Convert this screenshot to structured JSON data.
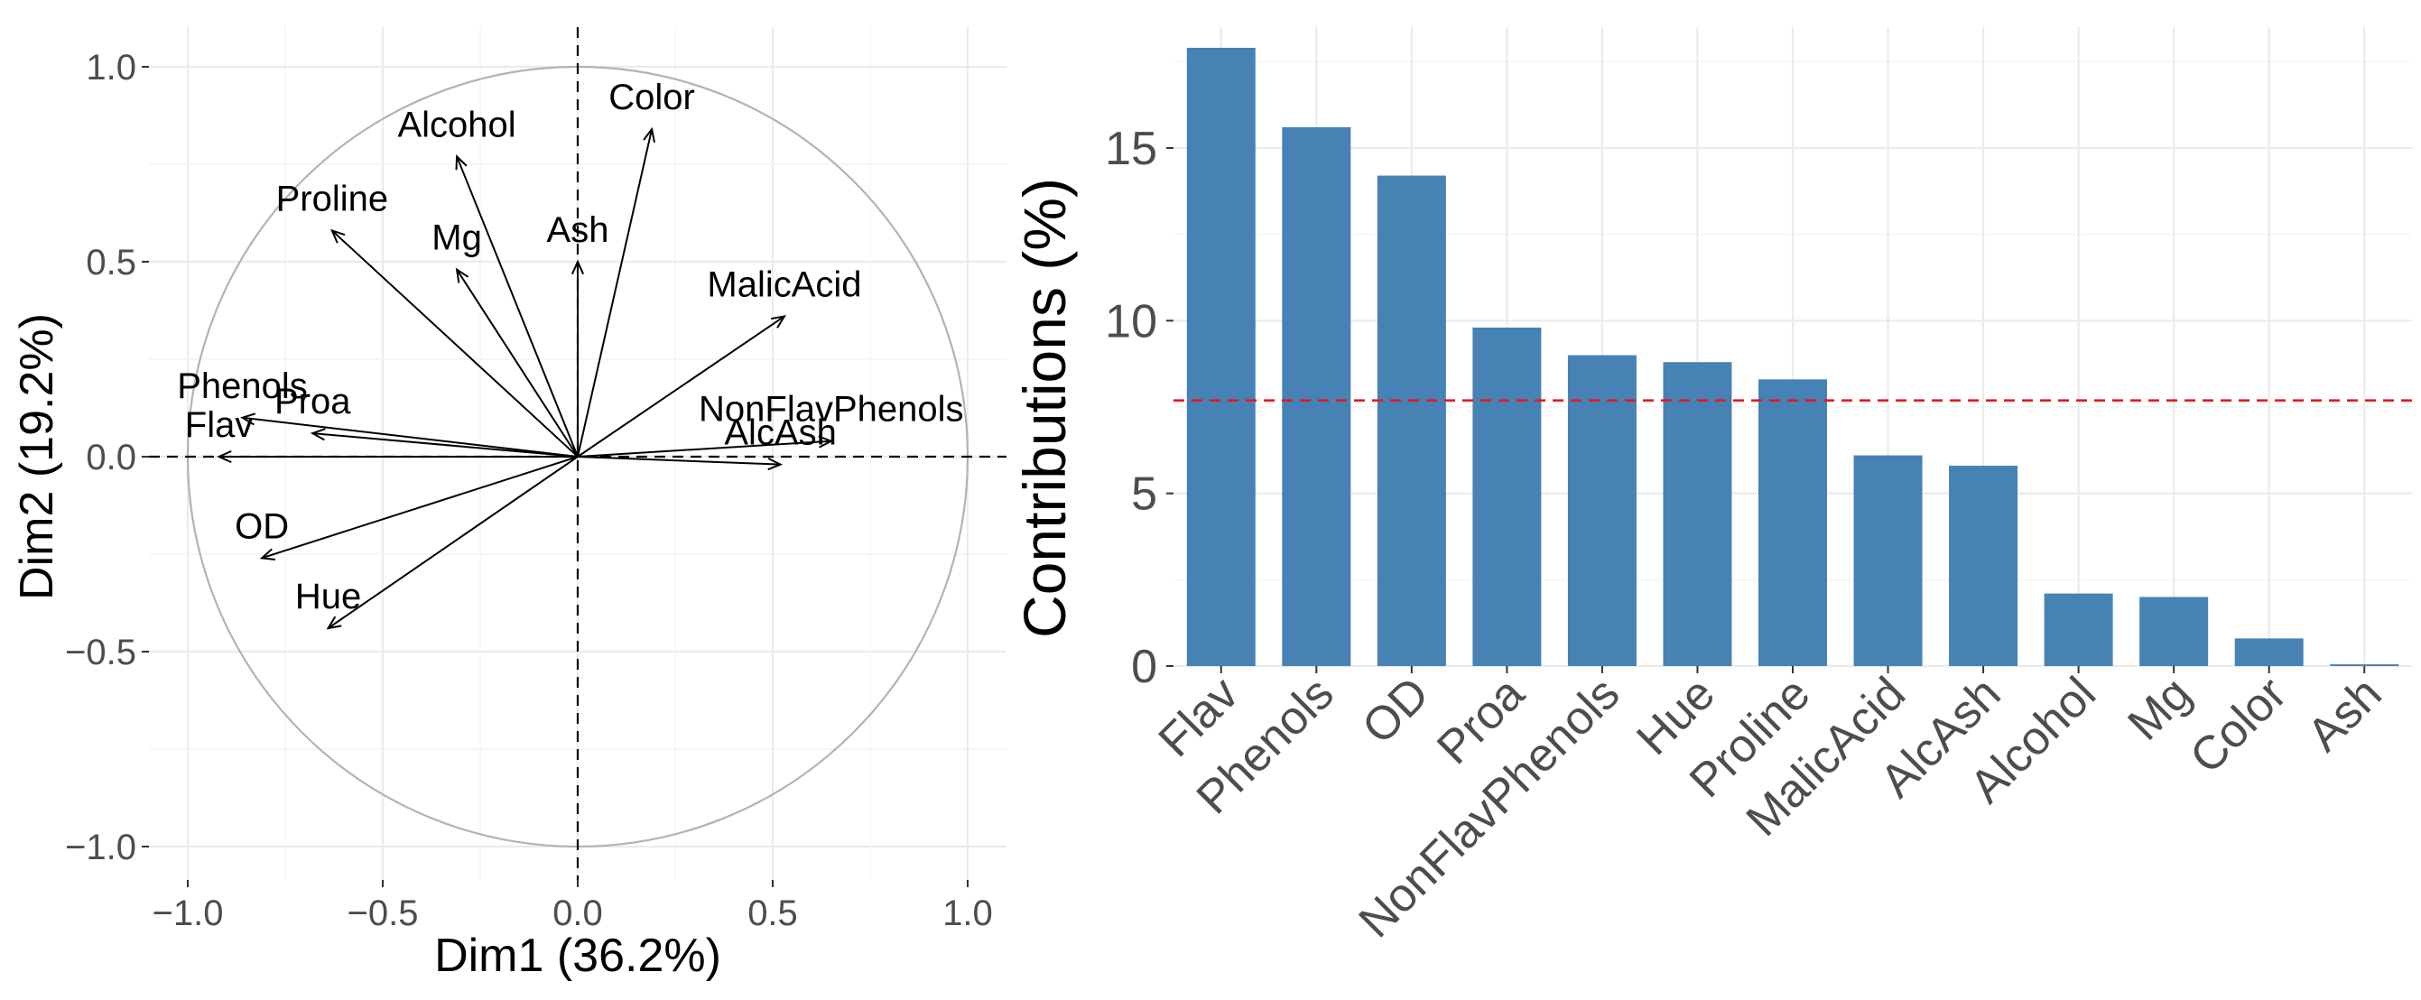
{
  "chart_data": [
    {
      "type": "scatter",
      "subtype": "pca-correlation-circle",
      "xlabel": "Dim1 (36.2%)",
      "ylabel": "Dim2 (19.2%)",
      "xlim": [
        -1.0,
        1.0
      ],
      "ylim": [
        -1.0,
        1.0
      ],
      "x_ticks": [
        -1.0,
        -0.5,
        0.0,
        0.5,
        1.0
      ],
      "y_ticks": [
        -1.0,
        -0.5,
        0.0,
        0.5,
        1.0
      ],
      "x_tick_labels": [
        "−1.0",
        "−0.5",
        "0.0",
        "0.5",
        "1.0"
      ],
      "y_tick_labels": [
        "−1.0",
        "−0.5",
        "0.0",
        "0.5",
        "1.0"
      ],
      "grid": true,
      "unit_circle": true,
      "arrow_color": "#000000",
      "circle_color": "#b3b3b3",
      "variables": [
        {
          "name": "Alcohol",
          "x": -0.31,
          "y": 0.77
        },
        {
          "name": "Color",
          "x": 0.19,
          "y": 0.84
        },
        {
          "name": "Proline",
          "x": -0.63,
          "y": 0.58
        },
        {
          "name": "Mg",
          "x": -0.31,
          "y": 0.48
        },
        {
          "name": "Ash",
          "x": 0.0,
          "y": 0.5
        },
        {
          "name": "MalicAcid",
          "x": 0.53,
          "y": 0.36
        },
        {
          "name": "Phenols",
          "x": -0.86,
          "y": 0.1
        },
        {
          "name": "Proa",
          "x": -0.68,
          "y": 0.06
        },
        {
          "name": "Flav",
          "x": -0.92,
          "y": 0.0
        },
        {
          "name": "NonFlavPhenols",
          "x": 0.65,
          "y": 0.04
        },
        {
          "name": "AlcAsh",
          "x": 0.52,
          "y": -0.02
        },
        {
          "name": "OD",
          "x": -0.81,
          "y": -0.26
        },
        {
          "name": "Hue",
          "x": -0.64,
          "y": -0.44
        }
      ]
    },
    {
      "type": "bar",
      "ylabel": "Contributions (%)",
      "xlabel": "",
      "ylim": [
        0,
        18.5
      ],
      "y_ticks": [
        0,
        5,
        10,
        15
      ],
      "y_tick_labels": [
        "0",
        "5",
        "10",
        "15"
      ],
      "grid": true,
      "bar_color": "#4682b4",
      "reference_line": {
        "value": 7.69,
        "color": "#e41a1c",
        "style": "dashed"
      },
      "categories": [
        "Flav",
        "Phenols",
        "OD",
        "Proa",
        "NonFlavPhenols",
        "Hue",
        "Proline",
        "MalicAcid",
        "AlcAsh",
        "Alcohol",
        "Mg",
        "Color",
        "Ash"
      ],
      "values": [
        17.9,
        15.6,
        14.2,
        9.8,
        9.0,
        8.8,
        8.3,
        6.1,
        5.8,
        2.1,
        2.0,
        0.8,
        0.05
      ]
    }
  ]
}
